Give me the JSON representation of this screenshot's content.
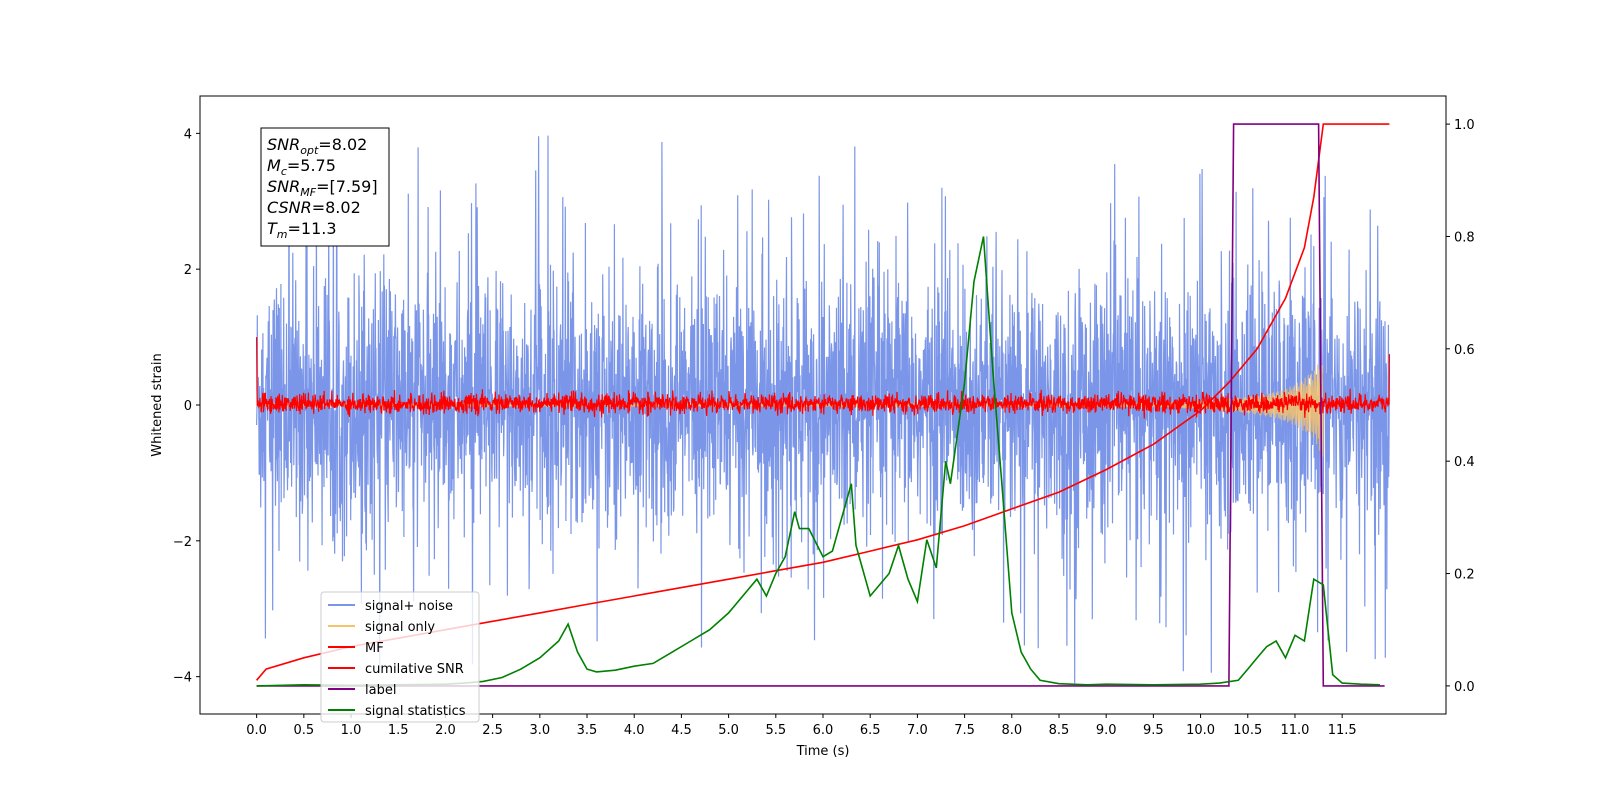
{
  "chart_data": {
    "type": "line",
    "xlabel": "Time (s)",
    "ylabel": "Whitened strain",
    "xlim": [
      -0.6,
      12.6
    ],
    "ylim": [
      -4.55,
      4.55
    ],
    "y2lim": [
      -0.05,
      1.05
    ],
    "x_ticks": [
      0.0,
      0.5,
      1.0,
      1.5,
      2.0,
      2.5,
      3.0,
      3.5,
      4.0,
      4.5,
      5.0,
      5.5,
      6.0,
      6.5,
      7.0,
      7.5,
      8.0,
      8.5,
      9.0,
      9.5,
      10.0,
      10.5,
      11.0,
      11.5
    ],
    "x_tick_labels": [
      "0.0",
      "0.5",
      "1.0",
      "1.5",
      "2.0",
      "2.5",
      "3.0",
      "3.5",
      "4.0",
      "4.5",
      "5.0",
      "5.5",
      "6.0",
      "6.5",
      "7.0",
      "7.5",
      "8.0",
      "8.5",
      "9.0",
      "9.5",
      "10.0",
      "10.5",
      "11.0",
      "11.5"
    ],
    "y_ticks": [
      -4,
      -2,
      0,
      2,
      4
    ],
    "y_tick_labels": [
      "−4",
      "−2",
      "0",
      "2",
      "4"
    ],
    "y2_ticks": [
      0.0,
      0.2,
      0.4,
      0.6,
      0.8,
      1.0
    ],
    "y2_tick_labels": [
      "0.0",
      "0.2",
      "0.4",
      "0.6",
      "0.8",
      "1.0"
    ],
    "grid": false,
    "legend_position": "lower-left",
    "legend": [
      {
        "label": "signal+ noise",
        "color": "#7b96e8"
      },
      {
        "label": "signal only",
        "color": "#f5c26b"
      },
      {
        "label": "MF",
        "color": "#ff0000"
      },
      {
        "label": "cumilative SNR",
        "color": "#ff0000"
      },
      {
        "label": "label",
        "color": "#800080"
      },
      {
        "label": "signal statistics",
        "color": "#008000"
      }
    ],
    "annotation_box": {
      "position": "top-left",
      "lines": [
        {
          "sym": "SNR",
          "sub": "opt",
          "val": "=8.02"
        },
        {
          "sym": "M",
          "sub": "c",
          "val": "=5.75"
        },
        {
          "sym": "SNR",
          "sub": "MF",
          "val": "=[7.59]"
        },
        {
          "sym": "CSNR",
          "sub": "",
          "val": "=8.02"
        },
        {
          "sym": "T",
          "sub": "m",
          "val": "=11.3"
        }
      ]
    },
    "series": [
      {
        "name": "signal+ noise",
        "axis": "left",
        "color": "#7b96e8",
        "x_range": [
          0.0,
          12.0
        ],
        "envelope": [
          -1.3,
          1.3
        ],
        "peak_ymax": 4.0,
        "peak_ymin": -4.1
      },
      {
        "name": "signal only",
        "axis": "left",
        "color": "#f5c26b",
        "x": [
          0.0,
          9.5,
          10.0,
          10.5,
          10.8,
          11.0,
          11.2,
          11.3
        ],
        "amplitude": [
          0.02,
          0.03,
          0.06,
          0.12,
          0.2,
          0.3,
          0.5,
          0.8
        ]
      },
      {
        "name": "MF",
        "axis": "left",
        "color": "#ff0000",
        "x_range": [
          0.0,
          12.0
        ],
        "envelope": [
          -0.2,
          0.25
        ],
        "start_spike": 1.0,
        "end_spike": 0.75
      },
      {
        "name": "cumilative SNR",
        "axis": "right",
        "color": "#ff0000",
        "x": [
          0.0,
          0.1,
          0.5,
          1.0,
          1.5,
          2.0,
          2.5,
          3.0,
          3.5,
          4.0,
          4.5,
          5.0,
          5.5,
          6.0,
          6.5,
          7.0,
          7.5,
          8.0,
          8.5,
          9.0,
          9.5,
          10.0,
          10.3,
          10.6,
          10.9,
          11.1,
          11.2,
          11.3,
          12.0
        ],
        "y": [
          0.01,
          0.03,
          0.05,
          0.07,
          0.085,
          0.1,
          0.115,
          0.13,
          0.145,
          0.16,
          0.175,
          0.19,
          0.205,
          0.22,
          0.24,
          0.26,
          0.285,
          0.315,
          0.345,
          0.385,
          0.43,
          0.49,
          0.54,
          0.6,
          0.69,
          0.78,
          0.87,
          1.0,
          1.0
        ]
      },
      {
        "name": "label",
        "axis": "right",
        "color": "#800080",
        "x": [
          0.0,
          10.3,
          10.35,
          11.25,
          11.3,
          11.95
        ],
        "y": [
          0.0,
          0.0,
          1.0,
          1.0,
          0.0,
          0.0
        ]
      },
      {
        "name": "signal statistics",
        "axis": "right",
        "color": "#008000",
        "x": [
          0.0,
          0.5,
          1.0,
          1.5,
          2.0,
          2.2,
          2.4,
          2.6,
          2.8,
          3.0,
          3.2,
          3.3,
          3.4,
          3.5,
          3.6,
          3.8,
          4.0,
          4.2,
          4.4,
          4.6,
          4.8,
          5.0,
          5.2,
          5.3,
          5.4,
          5.5,
          5.6,
          5.7,
          5.75,
          5.85,
          6.0,
          6.1,
          6.3,
          6.35,
          6.5,
          6.7,
          6.8,
          6.9,
          7.0,
          7.1,
          7.2,
          7.3,
          7.35,
          7.4,
          7.5,
          7.6,
          7.7,
          7.8,
          7.9,
          8.0,
          8.1,
          8.2,
          8.3,
          8.5,
          8.8,
          9.0,
          9.5,
          10.0,
          10.2,
          10.4,
          10.5,
          10.6,
          10.7,
          10.8,
          10.9,
          11.0,
          11.1,
          11.2,
          11.3,
          11.4,
          11.5,
          11.7,
          11.9
        ],
        "y": [
          0.0,
          0.002,
          0.001,
          0.002,
          0.003,
          0.005,
          0.008,
          0.015,
          0.03,
          0.05,
          0.08,
          0.11,
          0.06,
          0.03,
          0.025,
          0.028,
          0.035,
          0.04,
          0.06,
          0.08,
          0.1,
          0.13,
          0.17,
          0.19,
          0.16,
          0.2,
          0.23,
          0.31,
          0.28,
          0.28,
          0.23,
          0.24,
          0.36,
          0.25,
          0.16,
          0.2,
          0.25,
          0.19,
          0.15,
          0.26,
          0.21,
          0.4,
          0.36,
          0.42,
          0.54,
          0.72,
          0.8,
          0.56,
          0.35,
          0.13,
          0.06,
          0.03,
          0.01,
          0.004,
          0.002,
          0.003,
          0.002,
          0.003,
          0.005,
          0.01,
          0.03,
          0.05,
          0.07,
          0.08,
          0.05,
          0.09,
          0.08,
          0.19,
          0.18,
          0.02,
          0.005,
          0.003,
          0.002
        ]
      }
    ]
  }
}
